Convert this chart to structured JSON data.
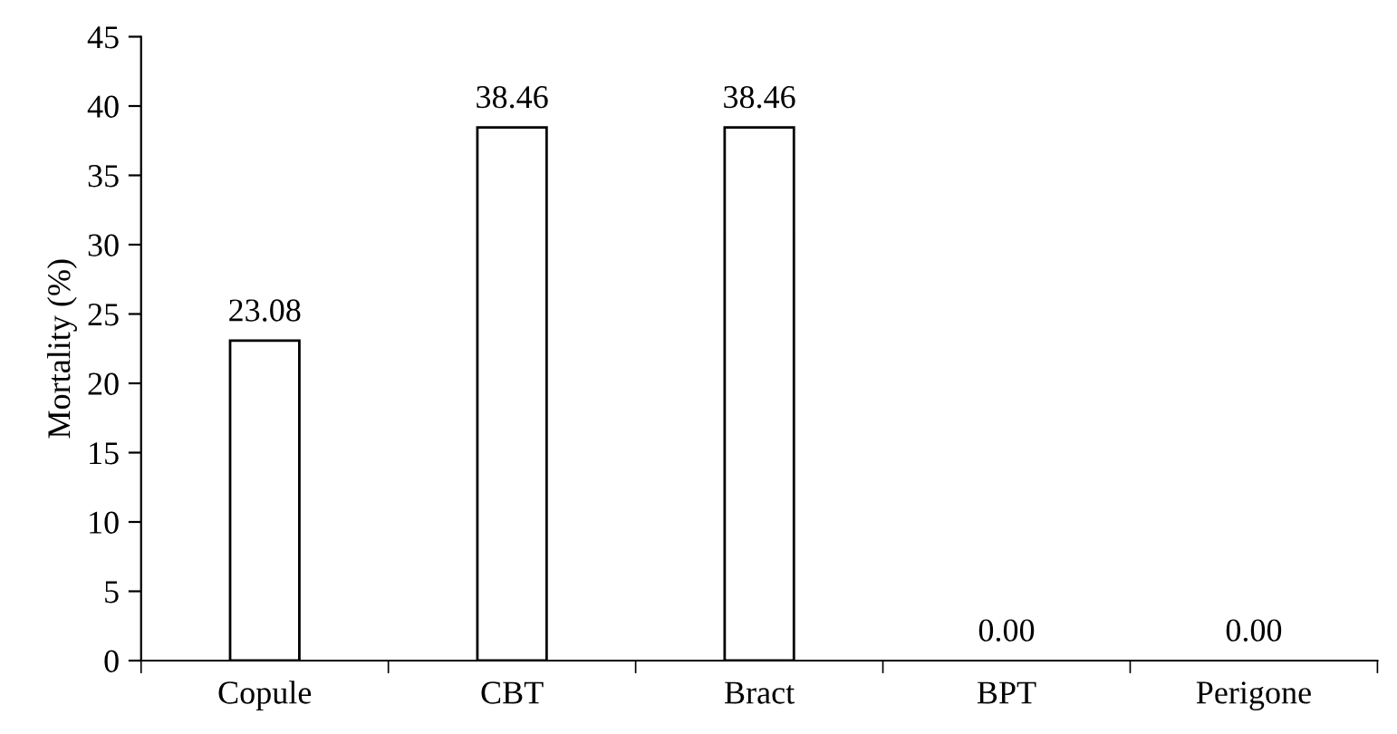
{
  "chart_data": {
    "type": "bar",
    "ylabel": "Mortality (%)",
    "categories": [
      "Copule",
      "CBT",
      "Bract",
      "BPT",
      "Perigone"
    ],
    "values": [
      23.08,
      38.46,
      38.46,
      0,
      0
    ],
    "value_labels": [
      "23.08",
      "38.46",
      "38.46",
      "0.00",
      "0.00"
    ],
    "color": "#ffffff",
    "ylim": [
      0,
      45
    ],
    "yticks": [
      0,
      5,
      10,
      15,
      20,
      25,
      30,
      35,
      40,
      45
    ],
    "grid": false
  }
}
